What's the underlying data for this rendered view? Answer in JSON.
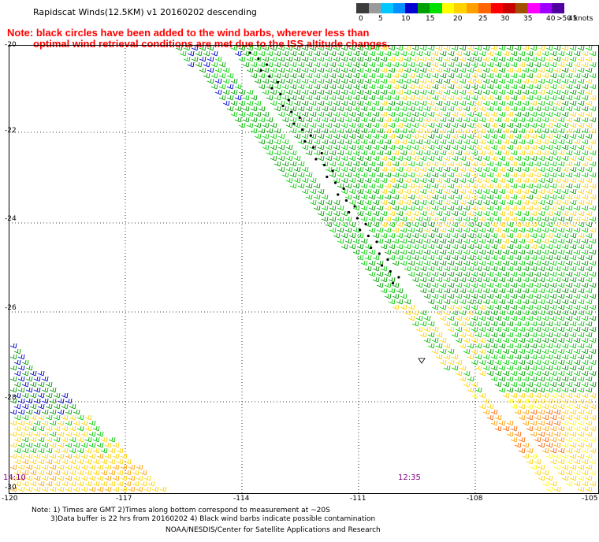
{
  "title": "Rapidscat Winds(12.5KM) v1 20160202 descending",
  "notice": {
    "line1": "Note: black circles have been added to the wind barbs, wherever less than",
    "line2": "optimal wind retrieval conditions are met due to the ISS altitude changes."
  },
  "legend": {
    "labels": [
      "0",
      "5",
      "10",
      "15",
      "20",
      "25",
      "30",
      "35",
      "40",
      "45",
      ">50 knots"
    ],
    "colors": [
      "#3c3c3c",
      "#9a9a9a",
      "#00c8ff",
      "#0090ff",
      "#0000d0",
      "#00a000",
      "#00e000",
      "#ffff00",
      "#ffd200",
      "#ffa000",
      "#ff6400",
      "#ff0000",
      "#c80000",
      "#a05000",
      "#ff00ff",
      "#a000ff",
      "#5000a0"
    ]
  },
  "map": {
    "lat_ticks": [
      "-20",
      "-22",
      "-24",
      "-26",
      "-28",
      "-30"
    ],
    "lon_ticks": [
      "-120",
      "-117",
      "-114",
      "-111",
      "-108",
      "-105"
    ],
    "timestamps": [
      "14:10",
      "12:35"
    ]
  },
  "footer": {
    "line1": "Note: 1) Times are GMT 2)Times along bottom correspond to measurement at ~20S",
    "line2": "3)Data buffer is 22 hrs from 20160202 4) Black wind barbs indicate possible contamination",
    "credit": "NOAA/NESDIS/Center for Satellite Applications and Research"
  }
}
